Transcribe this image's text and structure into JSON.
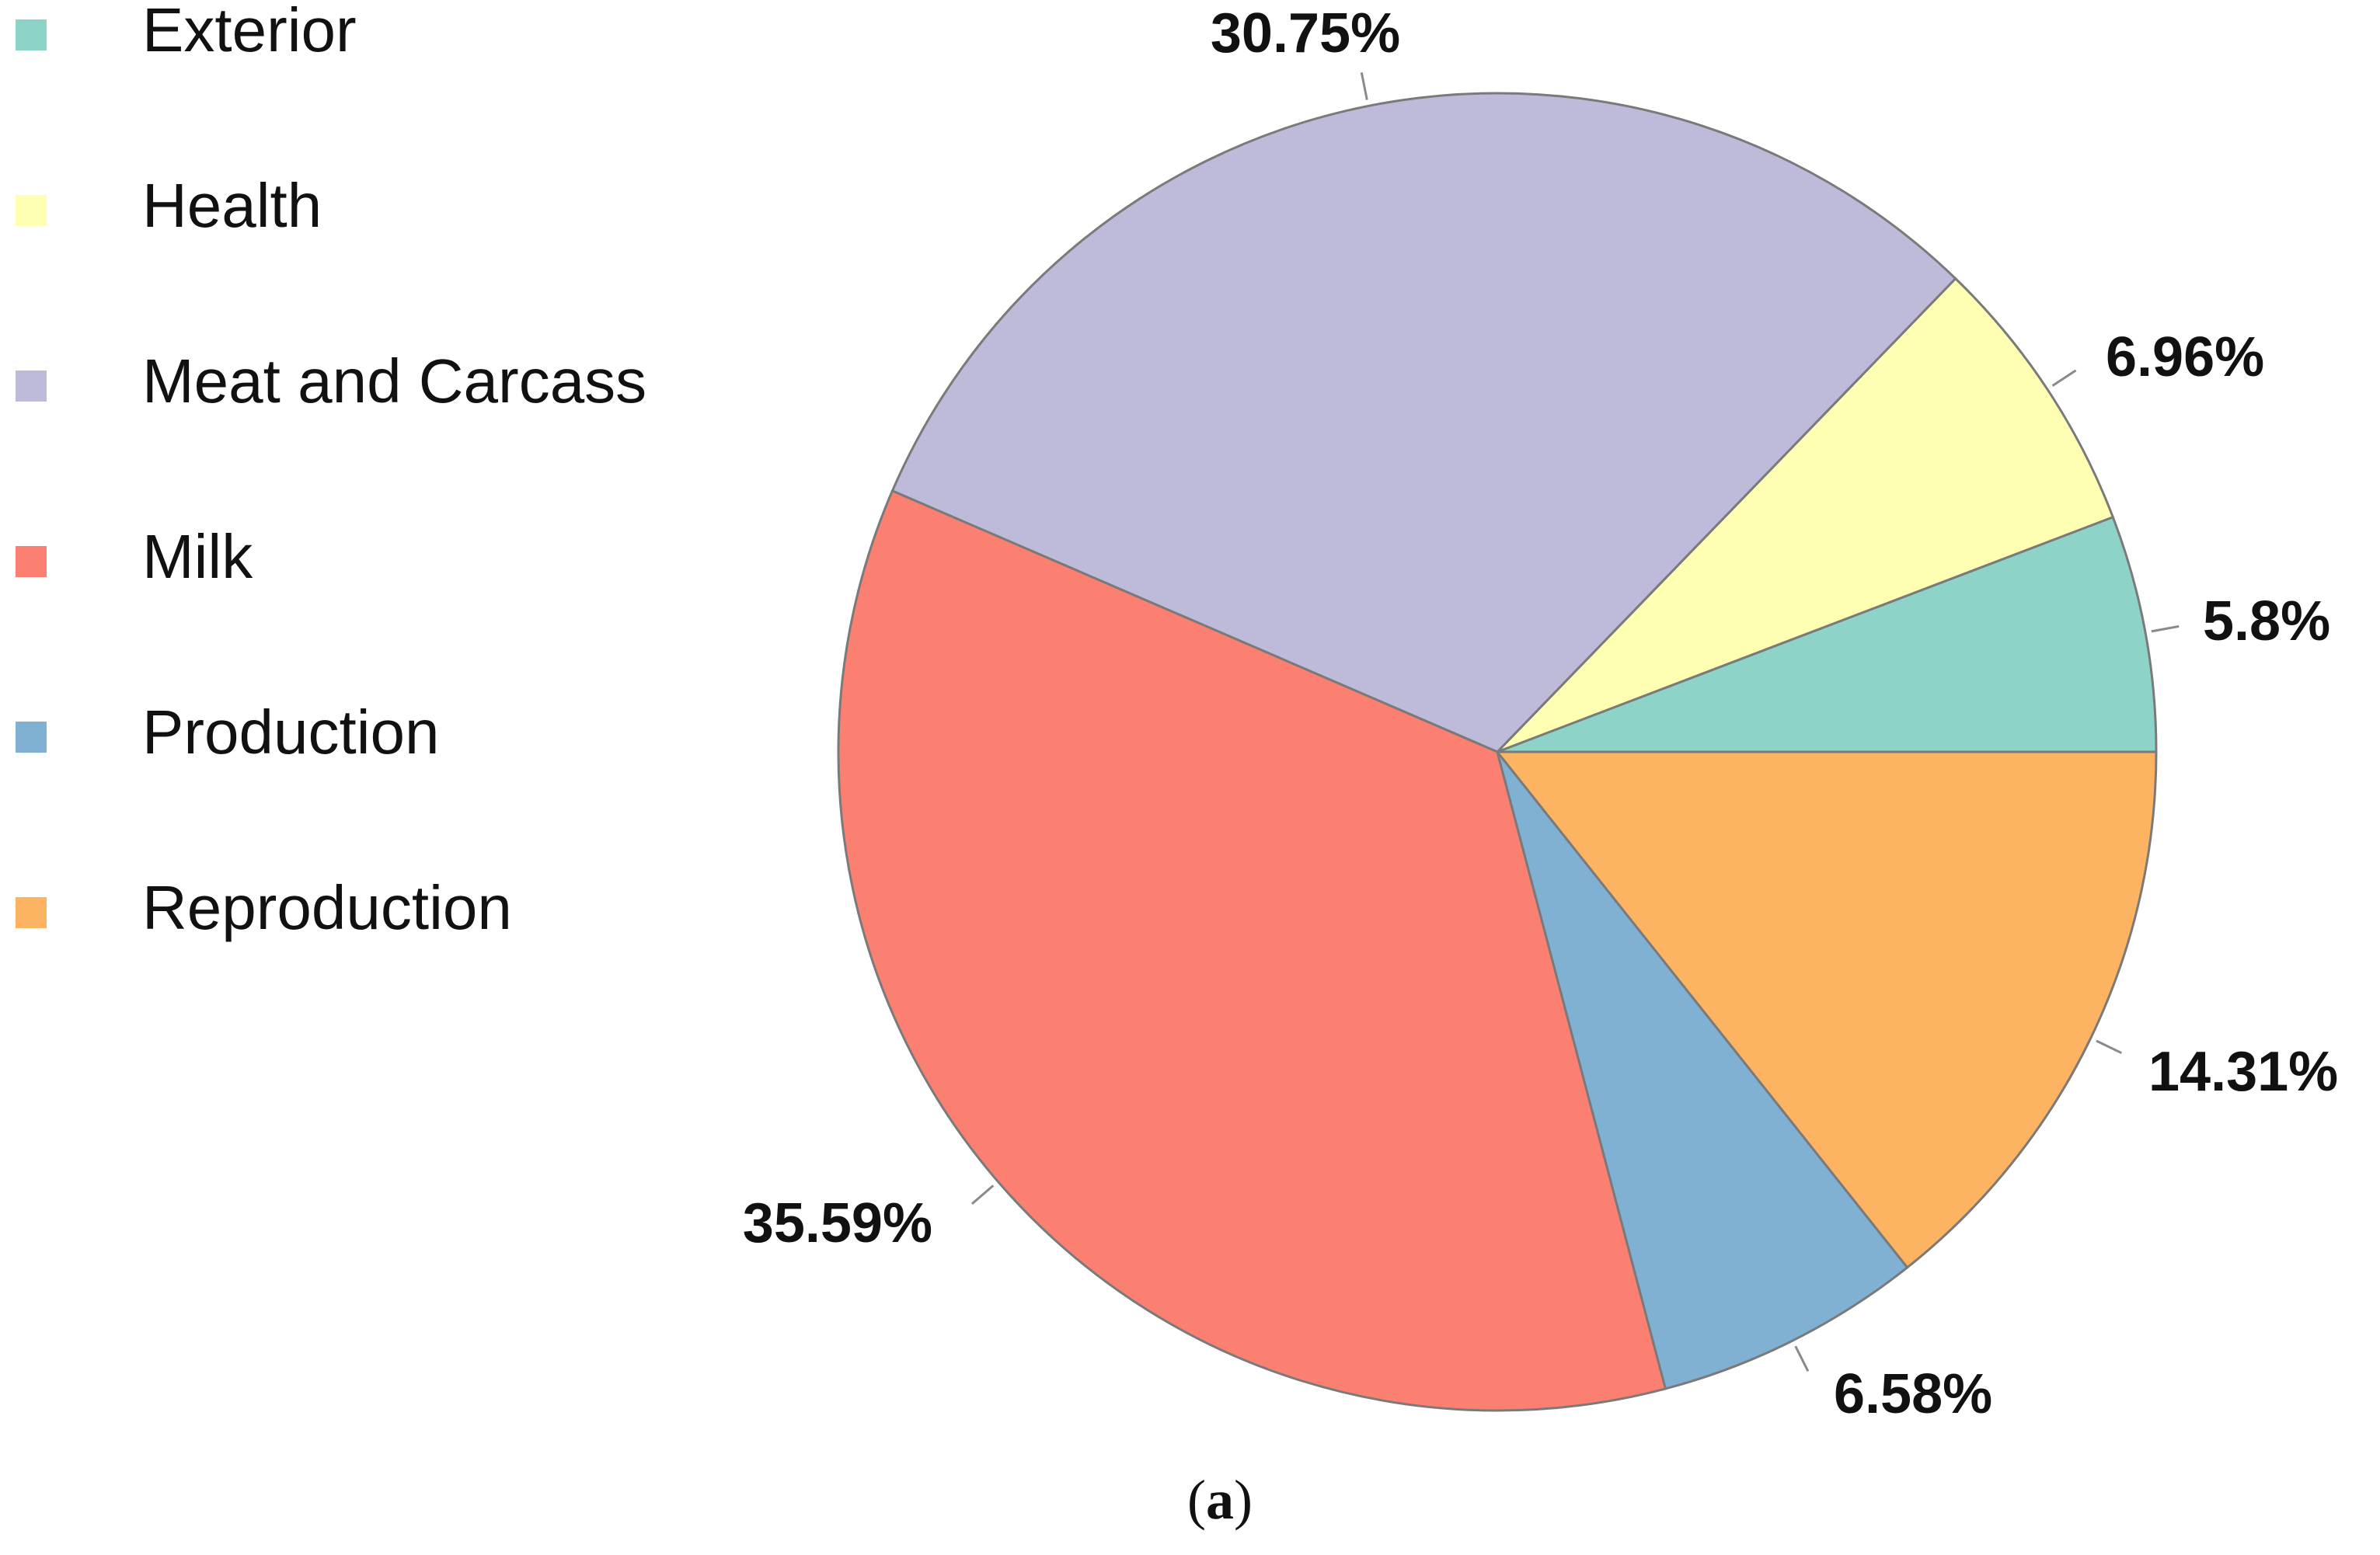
{
  "chart_data": {
    "type": "pie",
    "categories": [
      "Exterior",
      "Health",
      "Meat and Carcass",
      "Milk",
      "Production",
      "Reproduction"
    ],
    "values": [
      5.8,
      6.96,
      30.75,
      35.59,
      6.58,
      14.31
    ],
    "value_labels": [
      "5.8%",
      "6.96%",
      "30.75%",
      "35.59%",
      "6.58%",
      "14.31%"
    ],
    "colors": [
      "#8DD3C7",
      "#FFFFB3",
      "#BEBADA",
      "#FB8072",
      "#80B1D3",
      "#FDB462"
    ],
    "start_angle_deg": 0,
    "direction": "counterclockwise",
    "legend_position": "left",
    "title": "",
    "xlabel": "",
    "ylabel": ""
  },
  "caption": {
    "open": "(",
    "letter": "a",
    "close": ")"
  }
}
